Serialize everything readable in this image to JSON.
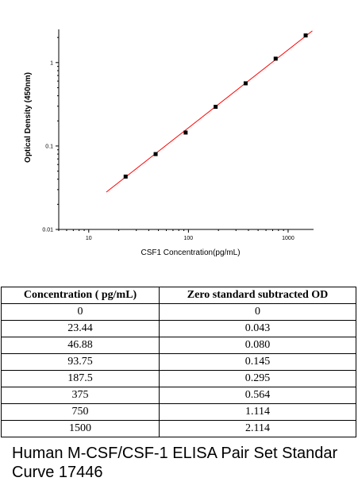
{
  "chart_data": {
    "type": "scatter",
    "xlabel": "CSF1  Concentration(pg/mL)",
    "ylabel": "Optical Density (450nm)",
    "xscale": "log",
    "yscale": "log",
    "xlim": [
      5,
      1800
    ],
    "ylim": [
      0.01,
      2.5
    ],
    "x_ticks": [
      10,
      100,
      1000
    ],
    "x_tick_labels": [
      "10",
      "100",
      "1000"
    ],
    "y_ticks": [
      0.01,
      0.1,
      1
    ],
    "y_tick_labels": [
      "0.01",
      "0.1",
      "1"
    ],
    "grid": false,
    "points": [
      {
        "x": 23.44,
        "y": 0.043
      },
      {
        "x": 46.88,
        "y": 0.08
      },
      {
        "x": 93.75,
        "y": 0.145
      },
      {
        "x": 187.5,
        "y": 0.295
      },
      {
        "x": 375,
        "y": 0.564
      },
      {
        "x": 750,
        "y": 1.114
      },
      {
        "x": 1500,
        "y": 2.114
      }
    ],
    "fit_line": {
      "x": [
        15,
        1750
      ],
      "y": [
        0.028,
        2.4
      ]
    },
    "colors": {
      "fit_line": "#ff0000",
      "points": "#000000"
    }
  },
  "table": {
    "headers": [
      "Concentration ( pg/mL)",
      "Zero standard subtracted OD"
    ],
    "rows": [
      [
        "0",
        "0"
      ],
      [
        "23.44",
        "0.043"
      ],
      [
        "46.88",
        "0.080"
      ],
      [
        "93.75",
        "0.145"
      ],
      [
        "187.5",
        "0.295"
      ],
      [
        "375",
        "0.564"
      ],
      [
        "750",
        "1.114"
      ],
      [
        "1500",
        "2.114"
      ]
    ]
  },
  "caption": "Human M-CSF/CSF-1 ELISA Pair Set Standar\nCurve 17446"
}
